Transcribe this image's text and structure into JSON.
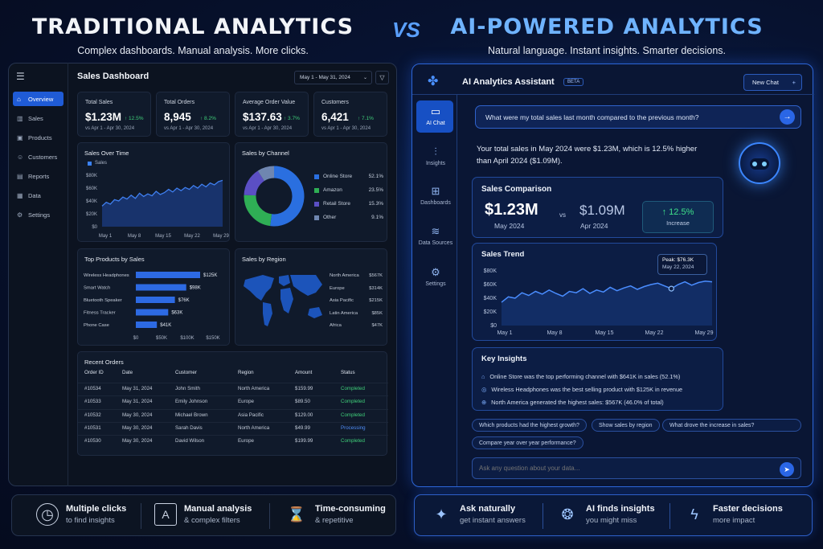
{
  "header": {
    "left_title": "TRADITIONAL ANALYTICS",
    "vs": "VS",
    "right_title": "AI-POWERED ANALYTICS",
    "left_sub": "Complex dashboards. Manual analysis. More clicks.",
    "right_sub": "Natural language. Instant insights. Smarter decisions."
  },
  "left": {
    "menu_icon": "hamburger-icon",
    "title": "Sales Dashboard",
    "date_range": "May 1 - May 31, 2024",
    "nav": [
      {
        "label": "Overview",
        "icon": "home-icon"
      },
      {
        "label": "Sales",
        "icon": "chart-icon"
      },
      {
        "label": "Products",
        "icon": "box-icon"
      },
      {
        "label": "Customers",
        "icon": "users-icon"
      },
      {
        "label": "Reports",
        "icon": "file-icon"
      },
      {
        "label": "Data",
        "icon": "table-icon"
      },
      {
        "label": "Settings",
        "icon": "gear-icon"
      }
    ],
    "kpis": [
      {
        "label": "Total Sales",
        "value": "$1.23M",
        "delta": "↑ 12.5%",
        "sub": "vs Apr 1 - Apr 30, 2024"
      },
      {
        "label": "Total Orders",
        "value": "8,945",
        "delta": "↑ 8.2%",
        "sub": "vs Apr 1 - Apr 30, 2024"
      },
      {
        "label": "Average Order Value",
        "value": "$137.63",
        "delta": "↑ 3.7%",
        "sub": "vs Apr 1 - Apr 30, 2024"
      },
      {
        "label": "Customers",
        "value": "6,421",
        "delta": "↑ 7.1%",
        "sub": "vs Apr 1 - Apr 30, 2024"
      }
    ],
    "sales_over_time": {
      "title": "Sales Over Time",
      "legend": "Sales",
      "yticks": [
        "$80K",
        "$60K",
        "$40K",
        "$20K",
        "$0"
      ],
      "xticks": [
        "May 1",
        "May 8",
        "May 15",
        "May 22",
        "May 29"
      ]
    },
    "sales_by_channel": {
      "title": "Sales by Channel",
      "items": [
        {
          "label": "Online Store",
          "pct": "52.1%",
          "value": 52.1,
          "color": "#2a6fe0"
        },
        {
          "label": "Amazon",
          "pct": "23.5%",
          "value": 23.5,
          "color": "#2fae55"
        },
        {
          "label": "Retail Store",
          "pct": "15.3%",
          "value": 15.3,
          "color": "#5b4fc4"
        },
        {
          "label": "Other",
          "pct": "9.1%",
          "value": 9.1,
          "color": "#6f86b0"
        }
      ]
    },
    "top_products": {
      "title": "Top Products by Sales",
      "items": [
        {
          "label": "Wireless Headphones",
          "value": "$125K",
          "num": 125
        },
        {
          "label": "Smart Watch",
          "value": "$98K",
          "num": 98
        },
        {
          "label": "Bluetooth Speaker",
          "value": "$76K",
          "num": 76
        },
        {
          "label": "Fitness Tracker",
          "value": "$63K",
          "num": 63
        },
        {
          "label": "Phone Case",
          "value": "$41K",
          "num": 41
        }
      ],
      "xticks": [
        "$0",
        "$50K",
        "$100K",
        "$150K"
      ]
    },
    "sales_by_region": {
      "title": "Sales by Region",
      "items": [
        {
          "label": "North America",
          "value": "$567K"
        },
        {
          "label": "Europe",
          "value": "$314K"
        },
        {
          "label": "Asia Pacific",
          "value": "$215K"
        },
        {
          "label": "Latin America",
          "value": "$85K"
        },
        {
          "label": "Africa",
          "value": "$47K"
        }
      ]
    },
    "recent_orders": {
      "title": "Recent Orders",
      "columns": [
        "Order ID",
        "Date",
        "Customer",
        "Region",
        "Amount",
        "Status"
      ],
      "rows": [
        [
          "#10534",
          "May 31, 2024",
          "John Smith",
          "North America",
          "$159.99",
          "Completed"
        ],
        [
          "#10533",
          "May 31, 2024",
          "Emily Johnson",
          "Europe",
          "$89.50",
          "Completed"
        ],
        [
          "#10532",
          "May 30, 2024",
          "Michael Brown",
          "Asia Pacific",
          "$129.00",
          "Completed"
        ],
        [
          "#10531",
          "May 30, 2024",
          "Sarah Davis",
          "North America",
          "$49.99",
          "Processing"
        ],
        [
          "#10530",
          "May 30, 2024",
          "David Wilson",
          "Europe",
          "$199.99",
          "Completed"
        ]
      ]
    }
  },
  "right": {
    "title": "AI Analytics Assistant",
    "badge": "BETA",
    "new_chat": "New Chat",
    "nav": [
      {
        "label": "AI Chat",
        "icon": "chat-icon"
      },
      {
        "label": "Insights",
        "icon": "insights-icon"
      },
      {
        "label": "Dashboards",
        "icon": "dashboard-icon"
      },
      {
        "label": "Data Sources",
        "icon": "database-icon"
      },
      {
        "label": "Settings",
        "icon": "gear-icon"
      }
    ],
    "question": "What were my total sales last month compared to the previous month?",
    "answer_line1": "Your total sales in May 2024 were $1.23M, which is 12.5% higher",
    "answer_line2": "than April 2024 ($1.09M).",
    "comparison": {
      "title": "Sales Comparison",
      "v1": "$1.23M",
      "l1": "May 2024",
      "vs": "vs",
      "v2": "$1.09M",
      "l2": "Apr 2024",
      "delta": "↑ 12.5%",
      "delta_label": "Increase"
    },
    "trend": {
      "title": "Sales Trend",
      "yticks": [
        "$80K",
        "$60K",
        "$40K",
        "$20K",
        "$0"
      ],
      "xticks": [
        "May 1",
        "May 8",
        "May 15",
        "May 22",
        "May 29"
      ],
      "peak_label": "Peak: $76.3K",
      "peak_date": "May 22, 2024"
    },
    "insights": {
      "title": "Key Insights",
      "items": [
        "Online Store was the top performing channel with $641K in sales (52.1%)",
        "Wireless Headphones was the best selling product with $125K in revenue",
        "North America generated the highest sales: $567K (46.0% of total)"
      ]
    },
    "chips": [
      "Which products had the highest growth?",
      "Show sales by region",
      "What drove the increase in sales?",
      "Compare year over year performance?"
    ],
    "input_placeholder": "Ask any question about your data..."
  },
  "footer": {
    "left": [
      {
        "t1": "Multiple clicks",
        "t2": "to find insights"
      },
      {
        "t1": "Manual analysis",
        "t2": "& complex filters"
      },
      {
        "t1": "Time-consuming",
        "t2": "& repetitive"
      }
    ],
    "right": [
      {
        "t1": "Ask naturally",
        "t2": "get instant answers"
      },
      {
        "t1": "AI finds insights",
        "t2": "you might miss"
      },
      {
        "t1": "Faster decisions",
        "t2": "more impact"
      }
    ]
  }
}
